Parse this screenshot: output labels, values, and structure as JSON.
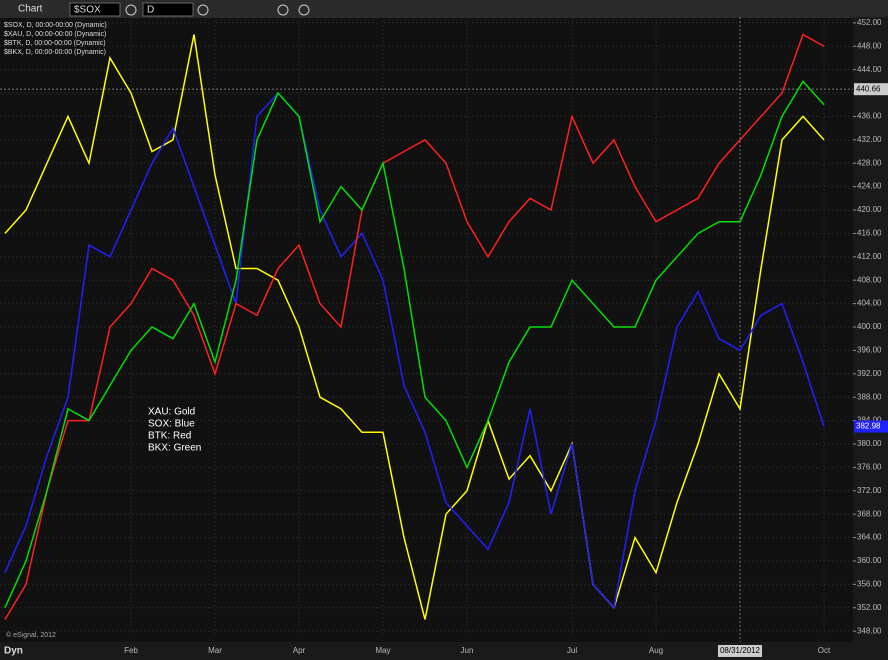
{
  "toolbar": {
    "title": "Chart",
    "symbol": "$SOX",
    "interval": "D",
    "mode": "Dyn"
  },
  "chart_data": {
    "type": "line",
    "categories": [
      null,
      null,
      null,
      null,
      null,
      null,
      "Feb",
      null,
      null,
      null,
      "Mar",
      null,
      null,
      null,
      "Apr",
      null,
      null,
      null,
      "May",
      null,
      null,
      null,
      "Jun",
      null,
      null,
      null,
      null,
      "Jul",
      null,
      null,
      null,
      "Aug",
      null,
      null,
      null,
      "08/31/2012",
      null,
      null,
      null,
      "Oct"
    ],
    "series": [
      {
        "name": "$SOX, D, 00:00-00:00 (Dynamic)",
        "color": "#2020ff",
        "values": [
          358,
          366,
          378,
          388,
          414,
          412,
          420,
          428,
          434,
          424,
          414,
          404,
          436,
          440,
          436,
          420,
          412,
          416,
          408,
          390,
          382,
          370,
          366,
          362,
          370,
          386,
          368,
          380,
          356,
          352,
          372,
          384,
          400,
          406,
          398,
          396,
          402,
          404,
          394,
          382.98
        ]
      },
      {
        "name": "$XAU, D, 00:00-00:00 (Dynamic)",
        "color": "#ffff00",
        "values": [
          416,
          420,
          428,
          436,
          428,
          446,
          440,
          430,
          432,
          450,
          426,
          410,
          410,
          408,
          400,
          388,
          386,
          382,
          382,
          364,
          350,
          368,
          372,
          384,
          374,
          378,
          372,
          380,
          356,
          352,
          364,
          358,
          370,
          380,
          392,
          386,
          410,
          432,
          436,
          432
        ]
      },
      {
        "name": "$BTK, D, 00:00-00:00 (Dynamic)",
        "color": "#ff2020",
        "values": [
          350,
          356,
          372,
          384,
          384,
          400,
          404,
          410,
          408,
          402,
          392,
          404,
          402,
          410,
          414,
          404,
          400,
          420,
          428,
          430,
          432,
          428,
          418,
          412,
          418,
          422,
          420,
          436,
          428,
          432,
          424,
          418,
          420,
          422,
          428,
          432,
          436,
          440,
          450,
          448
        ]
      },
      {
        "name": "$BKX, D, 00:00-00:00 (Dynamic)",
        "color": "#00e000",
        "values": [
          352,
          360,
          372,
          386,
          384,
          390,
          396,
          400,
          398,
          404,
          394,
          408,
          432,
          440,
          436,
          418,
          424,
          420,
          428,
          410,
          388,
          384,
          376,
          384,
          394,
          400,
          400,
          408,
          404,
          400,
          400,
          408,
          412,
          416,
          418,
          418,
          426,
          436,
          442,
          438
        ]
      }
    ],
    "ylim": [
      347,
      453
    ],
    "yticks": [
      {
        "value": 348,
        "label": "348.00"
      },
      {
        "value": 352,
        "label": "352.00"
      },
      {
        "value": 356,
        "label": "356.00"
      },
      {
        "value": 360,
        "label": "360.00"
      },
      {
        "value": 364,
        "label": "364.00"
      },
      {
        "value": 368,
        "label": "368.00"
      },
      {
        "value": 372,
        "label": "372.00"
      },
      {
        "value": 376,
        "label": "376.00"
      },
      {
        "value": 380,
        "label": "380.00"
      },
      {
        "value": 384,
        "label": "384.00"
      },
      {
        "value": 388,
        "label": "388.00"
      },
      {
        "value": 392,
        "label": "392.00"
      },
      {
        "value": 396,
        "label": "396.00"
      },
      {
        "value": 400,
        "label": "400.00"
      },
      {
        "value": 404,
        "label": "404.00"
      },
      {
        "value": 408,
        "label": "408.00"
      },
      {
        "value": 412,
        "label": "412.00"
      },
      {
        "value": 416,
        "label": "416.00"
      },
      {
        "value": 420,
        "label": "420.00"
      },
      {
        "value": 424,
        "label": "424.00"
      },
      {
        "value": 428,
        "label": "428.00"
      },
      {
        "value": 432,
        "label": "432.00"
      },
      {
        "value": 436,
        "label": "436.00"
      },
      {
        "value": 440,
        "label": "440.00"
      },
      {
        "value": 444,
        "label": "444.00"
      },
      {
        "value": 448,
        "label": "448.00"
      },
      {
        "value": 452,
        "label": "452.00"
      }
    ],
    "crosshair_y": 440.66,
    "grid": true,
    "annotation": [
      "XAU:  Gold",
      "SOX:  Blue",
      "BTK:  Red",
      "BKX:  Green"
    ],
    "copyright": "© eSignal, 2012"
  }
}
